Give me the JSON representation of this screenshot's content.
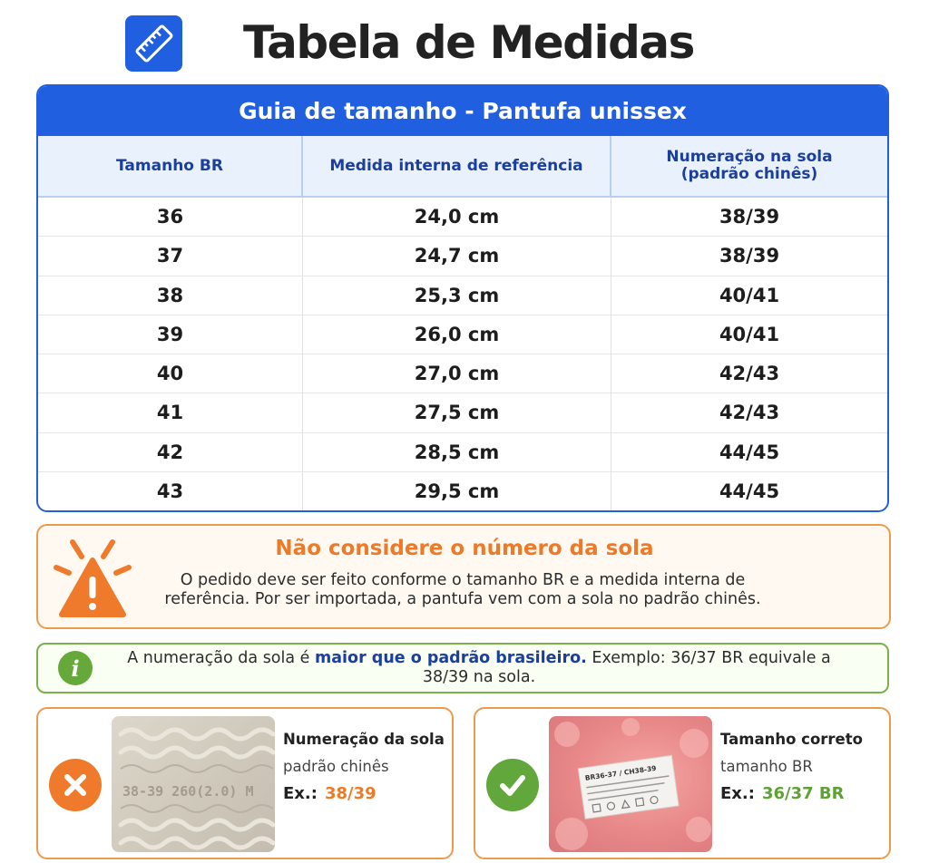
{
  "header": {
    "icon": "ruler-icon",
    "title": "Tabela de Medidas"
  },
  "table": {
    "caption": "Guia de tamanho - Pantufa unissex",
    "headers": {
      "size_br": "Tamanho BR",
      "inner_measure": "Medida interna de referência",
      "sole_numbering_line1": "Numeração na sola",
      "sole_numbering_line2": "(padrão chinês)"
    },
    "rows": [
      {
        "size_br": "36",
        "inner_measure": "24,0 cm",
        "sole": "38/39"
      },
      {
        "size_br": "37",
        "inner_measure": "24,7 cm",
        "sole": "38/39"
      },
      {
        "size_br": "38",
        "inner_measure": "25,3 cm",
        "sole": "40/41"
      },
      {
        "size_br": "39",
        "inner_measure": "26,0 cm",
        "sole": "40/41"
      },
      {
        "size_br": "40",
        "inner_measure": "27,0 cm",
        "sole": "42/43"
      },
      {
        "size_br": "41",
        "inner_measure": "27,5 cm",
        "sole": "42/43"
      },
      {
        "size_br": "42",
        "inner_measure": "28,5 cm",
        "sole": "44/45"
      },
      {
        "size_br": "43",
        "inner_measure": "29,5 cm",
        "sole": "44/45"
      }
    ]
  },
  "warning": {
    "icon": "warning-icon",
    "title": "Não considere o número da sola",
    "text_line1": "O pedido deve ser feito conforme o tamanho BR e a medida interna de",
    "text_line2": "referência. Por ser importada, a pantufa vem com a sola no padrão chinês."
  },
  "info": {
    "icon": "info-icon",
    "icon_glyph": "i",
    "text_before": "A numeração da sola é ",
    "text_highlight": "maior que o padrão brasileiro.",
    "text_after": " Exemplo: 36/37 BR equivale a",
    "text_line2": "38/39 na sola."
  },
  "examples": {
    "wrong": {
      "icon": "x-mark-icon",
      "title": "Numeração da sola",
      "subtitle": "padrão chinês",
      "example_label": "Ex.:",
      "example_value": "38/39",
      "photo_text": "38-39 260(2.0) M"
    },
    "right": {
      "icon": "check-mark-icon",
      "title": "Tamanho correto",
      "subtitle": "tamanho BR",
      "example_label": "Ex.:",
      "example_value": "36/37 BR",
      "photo_tag_text": "BR36-37 / CH38-39"
    }
  },
  "colors": {
    "blue": "#1f5fe0",
    "header_blue_text": "#1c3f9e",
    "orange": "#ee7a28",
    "green": "#62a73b"
  }
}
